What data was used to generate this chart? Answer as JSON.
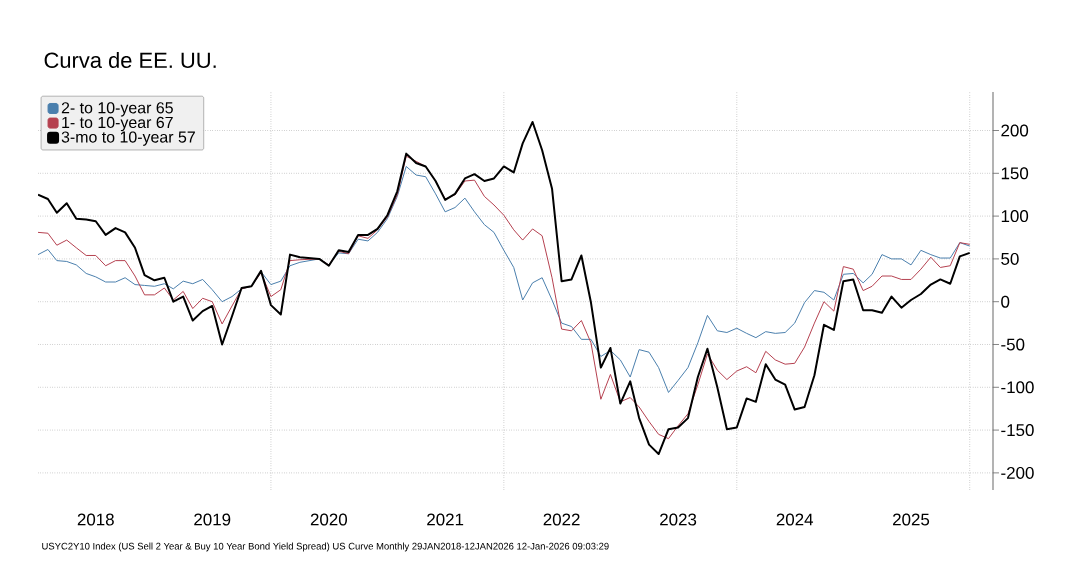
{
  "chart_data": {
    "type": "line",
    "title": "Curva de EE. UU.",
    "annotations": [
      "USYC2Y10 Index (US Sell 2 Year & Buy 10 Year Bond Yield Spread) US Curve Monthly 29JAN2018-12JAN2026 12-Jan-2026 09:03:29"
    ],
    "x": [
      "2018-01",
      "2018-02",
      "2018-03",
      "2018-04",
      "2018-05",
      "2018-06",
      "2018-07",
      "2018-08",
      "2018-09",
      "2018-10",
      "2018-11",
      "2018-12",
      "2019-01",
      "2019-02",
      "2019-03",
      "2019-04",
      "2019-05",
      "2019-06",
      "2019-07",
      "2019-08",
      "2019-09",
      "2019-10",
      "2019-11",
      "2019-12",
      "2020-01",
      "2020-02",
      "2020-03",
      "2020-04",
      "2020-06",
      "2020-07",
      "2020-08",
      "2020-09",
      "2020-10",
      "2020-11",
      "2020-12",
      "2021-01",
      "2021-02",
      "2021-03",
      "2021-04",
      "2021-05",
      "2021-06",
      "2021-07",
      "2021-08",
      "2021-09",
      "2021-10",
      "2021-11",
      "2021-12",
      "2022-01",
      "2022-02",
      "2022-03",
      "2022-04",
      "2022-05",
      "2022-06",
      "2022-07",
      "2022-08",
      "2022-09",
      "2022-10",
      "2022-11",
      "2022-12",
      "2023-01",
      "2023-02",
      "2023-03",
      "2023-04",
      "2023-05",
      "2023-06",
      "2023-07",
      "2023-08",
      "2023-09",
      "2023-10",
      "2023-11",
      "2023-12",
      "2024-01",
      "2024-02",
      "2024-03",
      "2024-04",
      "2024-05",
      "2024-06",
      "2024-07",
      "2024-08",
      "2024-09",
      "2024-10",
      "2024-11",
      "2024-12",
      "2025-01",
      "2025-02",
      "2025-03",
      "2025-04",
      "2025-05",
      "2025-06",
      "2025-07",
      "2025-08",
      "2025-09",
      "2025-10",
      "2025-11",
      "2025-12",
      "2026-01"
    ],
    "series": [
      {
        "name": "2- to 10-year 65",
        "color": "#4a7fad",
        "values": [
          55,
          61,
          48,
          47,
          43,
          33,
          29,
          23,
          23,
          28,
          20,
          19,
          18,
          21,
          15,
          24,
          21,
          26,
          14,
          0,
          6,
          15,
          18,
          35,
          20,
          24,
          42,
          46,
          50,
          43,
          57,
          56,
          73,
          71,
          81,
          97,
          123,
          158,
          148,
          146,
          126,
          105,
          110,
          121,
          105,
          90,
          81,
          60,
          40,
          2,
          22,
          28,
          2,
          -25,
          -29,
          -44,
          -44,
          -64,
          -57,
          -68,
          -88,
          -56,
          -59,
          -77,
          -106,
          -92,
          -77,
          -48,
          -16,
          -34,
          -36,
          -31,
          -37,
          -42,
          -35,
          -37,
          -36,
          -25,
          -1,
          13,
          11,
          2,
          32,
          33,
          22,
          32,
          55,
          50,
          50,
          43,
          60,
          55,
          51,
          51,
          69,
          65
        ]
      },
      {
        "name": "1- to 10-year 67",
        "color": "#b5404f",
        "values": [
          81,
          80,
          66,
          72,
          63,
          54,
          54,
          42,
          48,
          48,
          30,
          8,
          8,
          16,
          2,
          12,
          -8,
          4,
          0,
          -26,
          -5,
          15,
          18,
          34,
          6,
          14,
          48,
          49,
          50,
          43,
          59,
          56,
          77,
          74,
          84,
          99,
          125,
          170,
          164,
          158,
          141,
          120,
          125,
          141,
          142,
          123,
          113,
          101,
          84,
          72,
          85,
          77,
          28,
          -32,
          -34,
          -22,
          -48,
          -114,
          -85,
          -117,
          -112,
          -123,
          -140,
          -155,
          -160,
          -145,
          -131,
          -97,
          -61,
          -80,
          -91,
          -81,
          -76,
          -83,
          -58,
          -68,
          -73,
          -72,
          -53,
          -25,
          0,
          -11,
          41,
          38,
          13,
          18,
          30,
          30,
          26,
          26,
          38,
          52,
          40,
          42,
          69,
          67
        ]
      },
      {
        "name": "3-mo to 10-year 57",
        "color": "#000000",
        "values": [
          125,
          120,
          104,
          115,
          97,
          96,
          94,
          78,
          86,
          81,
          63,
          31,
          25,
          28,
          0,
          6,
          -22,
          -11,
          -5,
          -50,
          -17,
          16,
          18,
          36,
          -4,
          -15,
          55,
          52,
          50,
          42,
          60,
          58,
          78,
          78,
          85,
          101,
          129,
          173,
          162,
          158,
          141,
          119,
          126,
          144,
          149,
          141,
          144,
          158,
          151,
          185,
          210,
          177,
          132,
          24,
          26,
          54,
          -1,
          -77,
          -54,
          -119,
          -93,
          -136,
          -167,
          -178,
          -149,
          -147,
          -136,
          -88,
          -55,
          -100,
          -149,
          -147,
          -113,
          -117,
          -73,
          -91,
          -97,
          -126,
          -123,
          -86,
          -27,
          -33,
          24,
          26,
          -10,
          -10,
          -13,
          6,
          -7,
          2,
          9,
          20,
          26,
          21,
          53,
          57
        ]
      }
    ],
    "xlim": [
      "2018-01",
      "2026-03-15"
    ],
    "xticks": [
      {
        "value": "2018-07",
        "label": "2018"
      },
      {
        "value": "2019-07",
        "label": "2019"
      },
      {
        "value": "2020-07",
        "label": "2020"
      },
      {
        "value": "2021-07",
        "label": "2021"
      },
      {
        "value": "2022-07",
        "label": "2022"
      },
      {
        "value": "2023-07",
        "label": "2023"
      },
      {
        "value": "2024-07",
        "label": "2024"
      },
      {
        "value": "2025-07",
        "label": "2025"
      },
      {
        "value": "2020-01",
        "label": null
      },
      {
        "value": "2022-01",
        "label": null
      },
      {
        "value": "2024-01",
        "label": null
      },
      {
        "value": "2026-01",
        "label": null
      }
    ],
    "ylim": [
      -220,
      245
    ],
    "yticks": [
      -200,
      -150,
      -100,
      -50,
      0,
      50,
      100,
      150,
      200
    ],
    "grid": true,
    "legend": "top left"
  }
}
